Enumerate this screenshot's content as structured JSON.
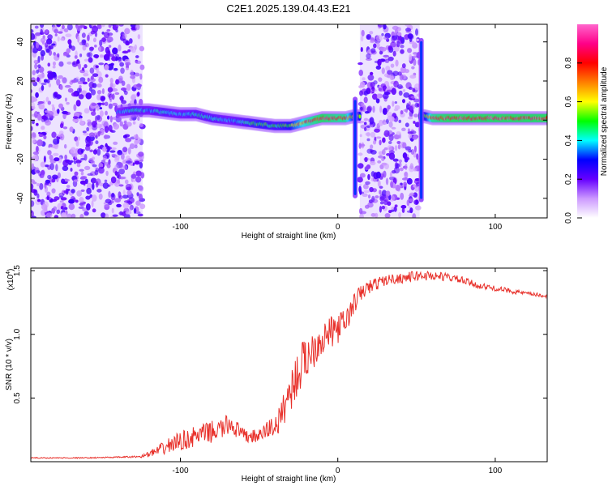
{
  "chart_data": [
    {
      "type": "heatmap",
      "title": "C2E1.2025.139.04.43.E21",
      "xlabel": "Height of straight line (km)",
      "ylabel": "Frequency (Hz)",
      "xlim": [
        -195,
        133
      ],
      "ylim": [
        -50,
        49
      ],
      "xticks": [
        -100,
        0,
        100
      ],
      "yticks": [
        -40,
        -20,
        0,
        20,
        40
      ],
      "colorbar": {
        "label": "Normalized spectral amplitude",
        "range": [
          0,
          1
        ],
        "ticks": [
          "0.0",
          "0.2",
          "0.4",
          "0.6",
          "0.8"
        ],
        "colors": [
          "#ffffff",
          "#cc99ff",
          "#6600ff",
          "#0000ff",
          "#00ffff",
          "#00ff00",
          "#ffff00",
          "#ff7f00",
          "#ff0000",
          "#ff0088",
          "#ff66cc"
        ]
      },
      "noise_regions": [
        {
          "x": [
            -195,
            -124
          ],
          "y": [
            -50,
            49
          ]
        },
        {
          "x": [
            14,
            52
          ],
          "y": [
            -50,
            49
          ]
        }
      ],
      "ridge": {
        "x": [
          -140,
          -130,
          -120,
          -110,
          -100,
          -90,
          -80,
          -70,
          -60,
          -50,
          -40,
          -30,
          -20,
          -10,
          0,
          5,
          10,
          55,
          60,
          70,
          80,
          90,
          100,
          110,
          120,
          133
        ],
        "y": [
          4,
          5,
          5,
          4,
          3,
          3,
          1,
          0,
          -1,
          -2,
          -3,
          -3,
          -1,
          1,
          1,
          1,
          2,
          2,
          1,
          1,
          1,
          1,
          1,
          1,
          1,
          1
        ],
        "amplitude": [
          0.35,
          0.45,
          0.4,
          0.45,
          0.4,
          0.45,
          0.45,
          0.4,
          0.45,
          0.55,
          0.5,
          0.6,
          0.85,
          0.95,
          0.9,
          0.9,
          0.6,
          0.5,
          0.9,
          0.95,
          0.95,
          0.95,
          0.95,
          0.95,
          0.95,
          0.95
        ]
      },
      "spikes": [
        {
          "x": 11,
          "y": [
            -40,
            12
          ]
        },
        {
          "x": 53,
          "y": [
            -42,
            42
          ]
        }
      ]
    },
    {
      "type": "line",
      "xlabel": "Height of straight line (km)",
      "ylabel": "SNR (10 * v/v)",
      "yscale_label": "(x10",
      "yscale_exp": "4",
      "xlim": [
        -195,
        133
      ],
      "ylim": [
        0,
        1.52
      ],
      "xticks": [
        -100,
        0,
        100
      ],
      "yticks": [
        "0.5",
        "1.0",
        "1.5"
      ],
      "ytick_values": [
        0.5,
        1.0,
        1.5
      ],
      "series": [
        {
          "color": "#e8312b",
          "x": [
            -195,
            -180,
            -160,
            -140,
            -125,
            -115,
            -105,
            -95,
            -85,
            -75,
            -68,
            -60,
            -50,
            -45,
            -38,
            -32,
            -28,
            -22,
            -18,
            -12,
            -6,
            0,
            5,
            12,
            18,
            25,
            32,
            40,
            50,
            60,
            70,
            80,
            90,
            100,
            110,
            120,
            133
          ],
          "y": [
            0.03,
            0.03,
            0.03,
            0.035,
            0.04,
            0.08,
            0.14,
            0.18,
            0.22,
            0.25,
            0.3,
            0.2,
            0.2,
            0.25,
            0.3,
            0.5,
            0.62,
            0.78,
            0.85,
            0.95,
            1.0,
            1.05,
            1.1,
            1.28,
            1.36,
            1.4,
            1.43,
            1.44,
            1.46,
            1.46,
            1.45,
            1.42,
            1.38,
            1.36,
            1.34,
            1.32,
            1.3
          ],
          "jitter": [
            0.004,
            0.004,
            0.004,
            0.005,
            0.008,
            0.04,
            0.07,
            0.08,
            0.08,
            0.09,
            0.08,
            0.06,
            0.05,
            0.08,
            0.1,
            0.15,
            0.18,
            0.18,
            0.17,
            0.15,
            0.13,
            0.12,
            0.1,
            0.08,
            0.06,
            0.05,
            0.04,
            0.04,
            0.04,
            0.04,
            0.03,
            0.03,
            0.025,
            0.02,
            0.02,
            0.015,
            0.015
          ]
        }
      ]
    }
  ]
}
